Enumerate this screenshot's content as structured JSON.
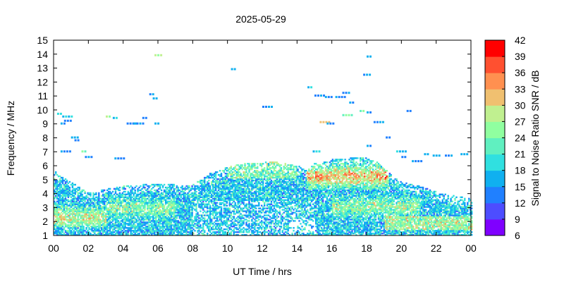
{
  "chart_data": {
    "type": "heatmap",
    "title": "2025-05-29",
    "xlabel": "UT Time / hrs",
    "ylabel": "Frequency / MHz",
    "colorbar_label": "Signal to Noise Ratio SNR / dB",
    "xlim": [
      0,
      24
    ],
    "ylim": [
      1,
      15
    ],
    "xticks": [
      "00",
      "02",
      "04",
      "06",
      "08",
      "10",
      "12",
      "14",
      "16",
      "18",
      "20",
      "22",
      "00"
    ],
    "yticks": [
      "1",
      "2",
      "3",
      "4",
      "5",
      "6",
      "7",
      "8",
      "9",
      "10",
      "11",
      "12",
      "13",
      "14",
      "15"
    ],
    "colorbar": {
      "ticks": [
        "6",
        "9",
        "12",
        "15",
        "18",
        "21",
        "24",
        "27",
        "30",
        "33",
        "36",
        "39",
        "42"
      ],
      "colors": [
        "#7f00ff",
        "#4d4dff",
        "#2080ff",
        "#10b0f0",
        "#30e0e0",
        "#60f0c0",
        "#90ffa0",
        "#c0f090",
        "#f0c070",
        "#ff9050",
        "#ff5030",
        "#ff0000"
      ]
    },
    "grid": false,
    "upper_envelope_mhz": [
      [
        0,
        5.6
      ],
      [
        0.5,
        5.2
      ],
      [
        1,
        4.8
      ],
      [
        1.5,
        4.4
      ],
      [
        2,
        4.0
      ],
      [
        2.5,
        4.1
      ],
      [
        3,
        4.3
      ],
      [
        3.5,
        4.4
      ],
      [
        4,
        4.5
      ],
      [
        5,
        4.6
      ],
      [
        6,
        4.7
      ],
      [
        7,
        4.6
      ],
      [
        7.5,
        4.5
      ],
      [
        8,
        4.6
      ],
      [
        8.5,
        5.0
      ],
      [
        9,
        5.4
      ],
      [
        9.5,
        5.6
      ],
      [
        10,
        5.9
      ],
      [
        11,
        6.1
      ],
      [
        12,
        6.2
      ],
      [
        13,
        6.2
      ],
      [
        14,
        6.0
      ],
      [
        14.5,
        5.6
      ],
      [
        15,
        6.1
      ],
      [
        16,
        6.4
      ],
      [
        17,
        6.5
      ],
      [
        18,
        6.5
      ],
      [
        18.5,
        6.3
      ],
      [
        19,
        5.8
      ],
      [
        19.5,
        5.2
      ],
      [
        20,
        4.8
      ],
      [
        21,
        4.5
      ],
      [
        22,
        4.1
      ],
      [
        23,
        3.8
      ],
      [
        24,
        3.6
      ]
    ],
    "sporadic_points": [
      {
        "t": 0.2,
        "f": 9.7,
        "snr": 18
      },
      {
        "t": 0.5,
        "f": 9.5,
        "snr": 18
      },
      {
        "t": 0.6,
        "f": 9.2,
        "snr": 15
      },
      {
        "t": 0.4,
        "f": 9.0,
        "snr": 15
      },
      {
        "t": 1.0,
        "f": 8.0,
        "snr": 15
      },
      {
        "t": 1.2,
        "f": 7.8,
        "snr": 15
      },
      {
        "t": 0.4,
        "f": 7.0,
        "snr": 15
      },
      {
        "t": 1.6,
        "f": 7.0,
        "snr": 24
      },
      {
        "t": 1.8,
        "f": 6.6,
        "snr": 15
      },
      {
        "t": 3.5,
        "f": 6.5,
        "snr": 15
      },
      {
        "t": 3.0,
        "f": 9.5,
        "snr": 27
      },
      {
        "t": 3.4,
        "f": 9.4,
        "snr": 18
      },
      {
        "t": 4.2,
        "f": 9.0,
        "snr": 15
      },
      {
        "t": 4.6,
        "f": 9.0,
        "snr": 15
      },
      {
        "t": 5.1,
        "f": 9.4,
        "snr": 15
      },
      {
        "t": 5.8,
        "f": 9.0,
        "snr": 15
      },
      {
        "t": 5.8,
        "f": 13.9,
        "snr": 27
      },
      {
        "t": 5.5,
        "f": 11.1,
        "snr": 15
      },
      {
        "t": 5.7,
        "f": 10.8,
        "snr": 15
      },
      {
        "t": 10.2,
        "f": 12.9,
        "snr": 15
      },
      {
        "t": 12.0,
        "f": 10.2,
        "snr": 15
      },
      {
        "t": 14.6,
        "f": 11.6,
        "snr": 18
      },
      {
        "t": 15.0,
        "f": 11.0,
        "snr": 15
      },
      {
        "t": 15.6,
        "f": 10.9,
        "snr": 15
      },
      {
        "t": 16.2,
        "f": 10.9,
        "snr": 15
      },
      {
        "t": 16.6,
        "f": 11.2,
        "snr": 15
      },
      {
        "t": 17.0,
        "f": 10.5,
        "snr": 15
      },
      {
        "t": 17.6,
        "f": 9.9,
        "snr": 24
      },
      {
        "t": 18.0,
        "f": 9.8,
        "snr": 15
      },
      {
        "t": 18.4,
        "f": 9.1,
        "snr": 15
      },
      {
        "t": 17.8,
        "f": 12.5,
        "snr": 15
      },
      {
        "t": 18.0,
        "f": 13.8,
        "snr": 15
      },
      {
        "t": 15.3,
        "f": 9.1,
        "snr": 33
      },
      {
        "t": 15.7,
        "f": 9.0,
        "snr": 15
      },
      {
        "t": 16.6,
        "f": 9.6,
        "snr": 24
      },
      {
        "t": 20.3,
        "f": 9.9,
        "snr": 15
      },
      {
        "t": 19.1,
        "f": 8.0,
        "snr": 15
      },
      {
        "t": 19.7,
        "f": 7.0,
        "snr": 18
      },
      {
        "t": 20.0,
        "f": 6.6,
        "snr": 15
      },
      {
        "t": 21.3,
        "f": 6.8,
        "snr": 18
      },
      {
        "t": 21.8,
        "f": 6.7,
        "snr": 15
      },
      {
        "t": 22.5,
        "f": 6.7,
        "snr": 15
      },
      {
        "t": 23.4,
        "f": 6.8,
        "snr": 15
      },
      {
        "t": 14.9,
        "f": 7.0,
        "snr": 18
      },
      {
        "t": 18.0,
        "f": 7.4,
        "snr": 15
      },
      {
        "t": 20.6,
        "f": 6.3,
        "snr": 15
      }
    ]
  }
}
